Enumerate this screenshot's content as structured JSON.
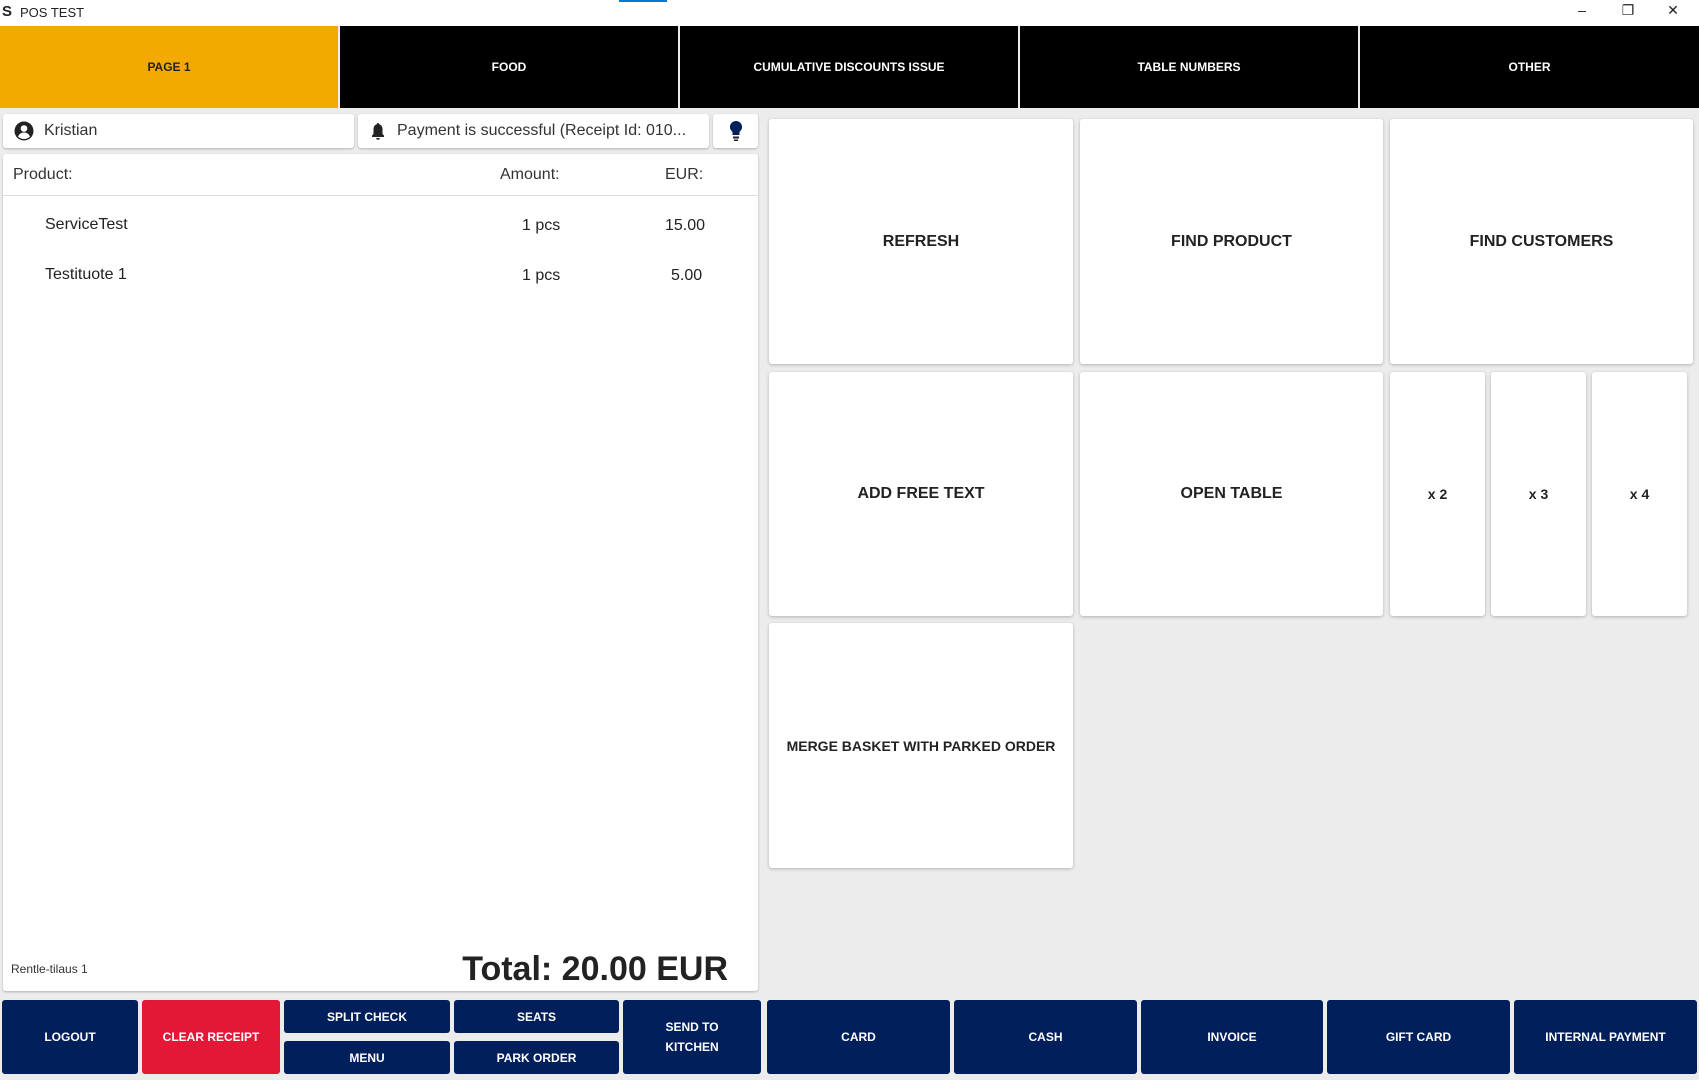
{
  "window": {
    "title": "POS TEST",
    "logo": "S",
    "minimize": "–",
    "restore": "❐",
    "close": "✕"
  },
  "tabs": [
    {
      "label": "PAGE 1",
      "active": true
    },
    {
      "label": "FOOD"
    },
    {
      "label": "CUMULATIVE DISCOUNTS ISSUE"
    },
    {
      "label": "TABLE NUMBERS"
    },
    {
      "label": "OTHER"
    }
  ],
  "user": {
    "name": "Kristian",
    "icon": "user-circle-icon"
  },
  "notification": {
    "text": "Payment is successful (Receipt Id: 010...",
    "icon": "bell-icon"
  },
  "hint_icon": "lightbulb-icon",
  "receipt": {
    "headers": {
      "product": "Product:",
      "amount": "Amount:",
      "currency": "EUR:"
    },
    "rows": [
      {
        "product": "ServiceTest",
        "amount": "1 pcs",
        "price": "15.00"
      },
      {
        "product": "Testituote 1",
        "amount": "1 pcs",
        "price": "5.00"
      }
    ],
    "order_name": "Rentle-tilaus 1",
    "total": "Total: 20.00 EUR"
  },
  "tiles": {
    "refresh": "REFRESH",
    "find_product": "FIND PRODUCT",
    "find_customers": "FIND CUSTOMERS",
    "add_free_text": "ADD FREE TEXT",
    "open_table": "OPEN TABLE",
    "x2": "x 2",
    "x3": "x 3",
    "x4": "x 4",
    "merge": "MERGE BASKET WITH PARKED ORDER"
  },
  "bottom": {
    "logout": "LOGOUT",
    "clear": "CLEAR RECEIPT",
    "split": "SPLIT CHECK",
    "menu": "MENU",
    "seats": "SEATS",
    "park": "PARK ORDER",
    "send1": "SEND TO",
    "send2": "KITCHEN",
    "card": "CARD",
    "cash": "CASH",
    "invoice": "INVOICE",
    "gift": "GIFT CARD",
    "internal": "INTERNAL PAYMENT"
  },
  "colors": {
    "accent": "#f2a900",
    "navy": "#001f5b",
    "danger": "#e31837"
  }
}
